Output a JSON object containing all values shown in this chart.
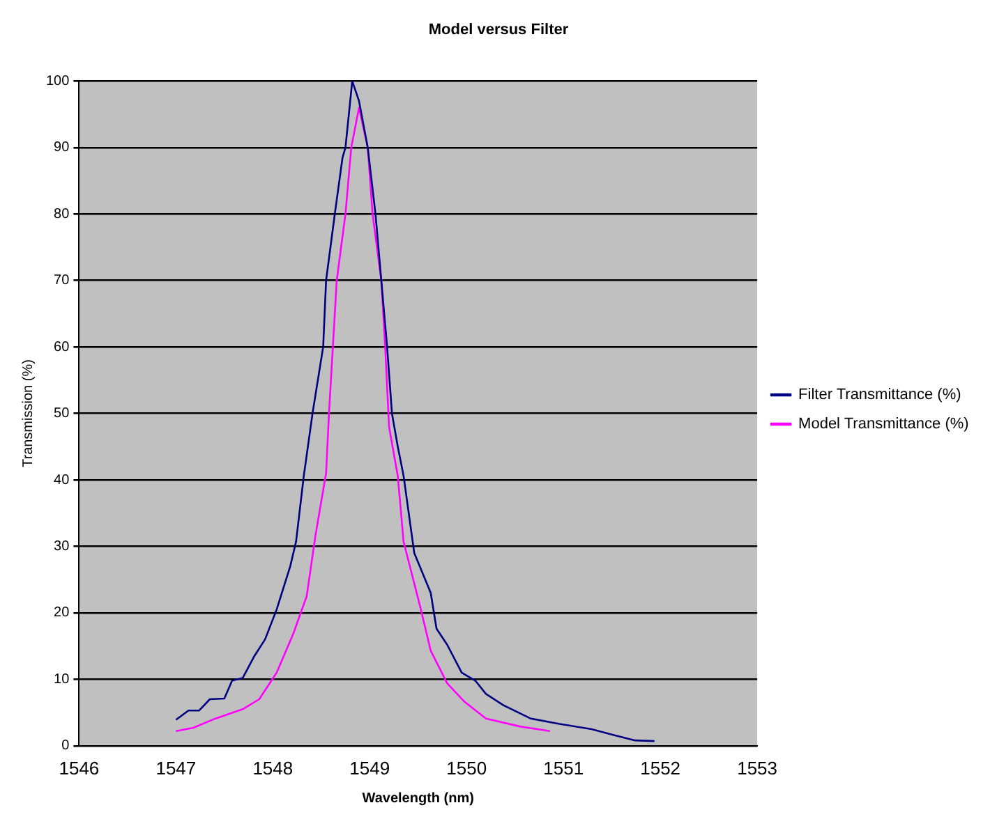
{
  "chart_data": {
    "type": "line",
    "title": "Model versus Filter",
    "xlabel": "Wavelength (nm)",
    "ylabel": "Transmission (%)",
    "xlim": [
      1546,
      1553
    ],
    "xticks": [
      1546,
      1547,
      1548,
      1549,
      1550,
      1551,
      1552,
      1553
    ],
    "ylim": [
      0,
      100
    ],
    "yticks": [
      0,
      10,
      20,
      30,
      40,
      50,
      60,
      70,
      80,
      90,
      100
    ],
    "grid": "y",
    "legend": "right",
    "marker": "none",
    "line_style": "solid",
    "series": [
      {
        "name": "Filter Transmittance (%)",
        "color": "#000080",
        "x": [
          1547.0,
          1547.13,
          1547.24,
          1547.35,
          1547.5,
          1547.58,
          1547.69,
          1547.81,
          1547.92,
          1548.04,
          1548.18,
          1548.24,
          1548.32,
          1548.41,
          1548.52,
          1548.55,
          1548.64,
          1548.72,
          1548.75,
          1548.82,
          1548.89,
          1548.98,
          1549.06,
          1549.12,
          1549.18,
          1549.23,
          1549.29,
          1549.35,
          1549.46,
          1549.63,
          1549.69,
          1549.8,
          1549.95,
          1550.09,
          1550.2,
          1550.38,
          1550.66,
          1550.95,
          1551.29,
          1551.52,
          1551.74,
          1551.94
        ],
        "values": [
          3.9,
          5.3,
          5.3,
          7,
          7.1,
          9.8,
          10.2,
          13.5,
          16,
          20.5,
          27,
          30.7,
          40.6,
          50,
          60,
          70,
          80,
          88.5,
          90,
          100,
          97,
          90,
          80,
          70,
          60,
          50,
          45,
          40.6,
          29,
          23,
          17.6,
          15.2,
          11,
          9.8,
          7.8,
          6.1,
          4.1,
          3.3,
          2.5,
          1.6,
          0.8,
          0.7
        ]
      },
      {
        "name": "Model Transmittance (%)",
        "color": "#ff00ff",
        "x": [
          1547.0,
          1547.18,
          1547.41,
          1547.69,
          1547.86,
          1548.04,
          1548.21,
          1548.35,
          1548.44,
          1548.55,
          1548.58,
          1548.66,
          1548.75,
          1548.81,
          1548.89,
          1548.98,
          1549.03,
          1549.12,
          1549.16,
          1549.2,
          1549.29,
          1549.35,
          1549.52,
          1549.63,
          1549.8,
          1549.98,
          1550.2,
          1550.55,
          1550.86
        ],
        "values": [
          2.2,
          2.7,
          4.1,
          5.5,
          7,
          11,
          16.8,
          22.5,
          31.6,
          41,
          50,
          70,
          80,
          90,
          96,
          90,
          80,
          70,
          60,
          48,
          40.6,
          30.7,
          21,
          14.3,
          9.4,
          6.6,
          4.1,
          2.9,
          2.2
        ]
      }
    ]
  }
}
